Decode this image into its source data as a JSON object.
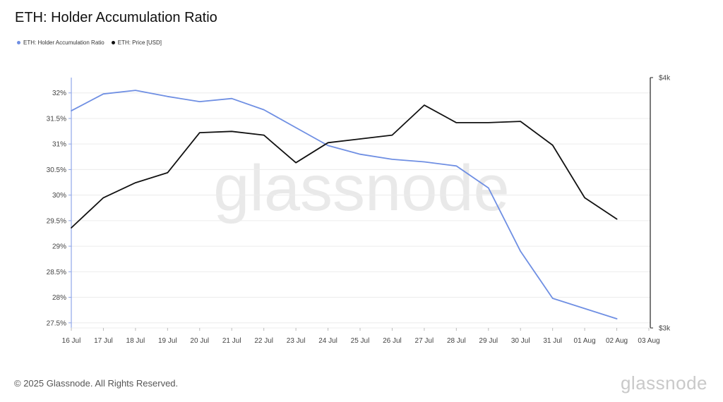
{
  "title": "ETH: Holder Accumulation Ratio",
  "footer": "© 2025 Glassnode. All Rights Reserved.",
  "brand": "glassnode",
  "watermark": "glassnode",
  "colors": {
    "ratio": "#6f8fe3",
    "price": "#111111",
    "grid": "#ececec",
    "axis": "#8fa6e8"
  },
  "chart_data": {
    "type": "line",
    "x": [
      "16 Jul",
      "17 Jul",
      "18 Jul",
      "19 Jul",
      "20 Jul",
      "21 Jul",
      "22 Jul",
      "23 Jul",
      "24 Jul",
      "25 Jul",
      "26 Jul",
      "27 Jul",
      "28 Jul",
      "29 Jul",
      "30 Jul",
      "31 Jul",
      "01 Aug",
      "02 Aug",
      "03 Aug"
    ],
    "y_left_ticks": [
      "32%",
      "31.5%",
      "31%",
      "30.5%",
      "30%",
      "29.5%",
      "29%",
      "28.5%",
      "28%",
      "27.5%"
    ],
    "y_left_range": [
      27.4,
      32.3
    ],
    "y_right_ticks": [
      "$4k",
      "$3k"
    ],
    "y_right_range": [
      3000,
      4000
    ],
    "series": [
      {
        "name": "ETH: Holder Accumulation Ratio",
        "axis": "left",
        "values": [
          31.65,
          31.98,
          32.05,
          31.93,
          31.83,
          31.89,
          31.67,
          31.32,
          30.97,
          30.8,
          30.7,
          30.65,
          30.57,
          30.14,
          28.9,
          27.98,
          27.78,
          27.58,
          null
        ]
      },
      {
        "name": "ETH: Price [USD]",
        "axis": "right",
        "values": [
          3400,
          3520,
          3580,
          3620,
          3780,
          3785,
          3770,
          3660,
          3740,
          3755,
          3770,
          3890,
          3820,
          3820,
          3825,
          3730,
          3520,
          3435,
          null
        ]
      }
    ],
    "grid": true,
    "legend": "top-left"
  }
}
